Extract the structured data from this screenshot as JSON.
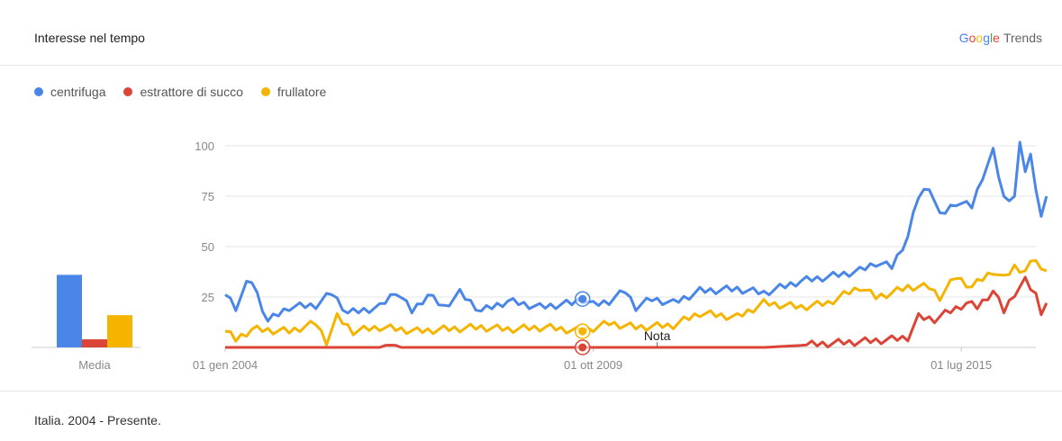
{
  "header": {
    "title": "Interesse nel tempo",
    "brand": {
      "g1": "G",
      "g2": "o",
      "g3": "o",
      "g4": "g",
      "g5": "l",
      "g6": "e",
      "trends": "Trends"
    }
  },
  "footer": {
    "text": "Italia. 2004 - Presente."
  },
  "colors": {
    "centrifuga": "#4a86e8",
    "estrattore": "#db4437",
    "frullatore": "#f4b400",
    "grid": "#e6e6e6"
  },
  "chart_data": {
    "type": "line",
    "x_start": "2004-01",
    "x_end": "2016-09",
    "xticks": [
      {
        "label": "01 gen 2004",
        "date": "2004-01"
      },
      {
        "label": "01 ott 2009",
        "date": "2009-10"
      },
      {
        "label": "01 lug 2015",
        "date": "2015-07"
      }
    ],
    "ylim": [
      0,
      100
    ],
    "yticks": [
      25,
      50,
      75,
      100
    ],
    "grid": true,
    "legend_position": "top-left",
    "annotation": {
      "label": "Nota",
      "date": "2010-10"
    },
    "markers": [
      {
        "date": "2009-08"
      }
    ],
    "series": [
      {
        "name": "centrifuga",
        "knots": [
          [
            "2004-01",
            27
          ],
          [
            "2004-03",
            20
          ],
          [
            "2004-05",
            31
          ],
          [
            "2004-06",
            33
          ],
          [
            "2004-09",
            13
          ],
          [
            "2005-01",
            20
          ],
          [
            "2005-06",
            21
          ],
          [
            "2005-09",
            27
          ],
          [
            "2005-12",
            17
          ],
          [
            "2006-06",
            20
          ],
          [
            "2006-09",
            28
          ],
          [
            "2006-12",
            18
          ],
          [
            "2007-03",
            26
          ],
          [
            "2007-06",
            20
          ],
          [
            "2007-09",
            27
          ],
          [
            "2008-01",
            18
          ],
          [
            "2008-06",
            23
          ],
          [
            "2008-12",
            20
          ],
          [
            "2009-06",
            22
          ],
          [
            "2009-08",
            24
          ],
          [
            "2009-10",
            21
          ],
          [
            "2010-01",
            23
          ],
          [
            "2010-04",
            28
          ],
          [
            "2010-06",
            20
          ],
          [
            "2010-09",
            24
          ],
          [
            "2011-01",
            22
          ],
          [
            "2011-06",
            28
          ],
          [
            "2012-01",
            29
          ],
          [
            "2012-06",
            27
          ],
          [
            "2013-01",
            33
          ],
          [
            "2013-06",
            35
          ],
          [
            "2013-12",
            38
          ],
          [
            "2014-03",
            42
          ],
          [
            "2014-06",
            40
          ],
          [
            "2014-09",
            55
          ],
          [
            "2014-11",
            75
          ],
          [
            "2015-01",
            80
          ],
          [
            "2015-03",
            65
          ],
          [
            "2015-06",
            72
          ],
          [
            "2015-09",
            70
          ],
          [
            "2015-11",
            85
          ],
          [
            "2016-01",
            97
          ],
          [
            "2016-03",
            74
          ],
          [
            "2016-05",
            75
          ],
          [
            "2016-06",
            100
          ],
          [
            "2016-07",
            88
          ],
          [
            "2016-08",
            95
          ],
          [
            "2016-09",
            80
          ],
          [
            "2016-10",
            65
          ],
          [
            "2016-11",
            75
          ]
        ]
      },
      {
        "name": "estrattore di succo",
        "knots": [
          [
            "2004-01",
            0
          ],
          [
            "2006-06",
            0
          ],
          [
            "2006-08",
            2
          ],
          [
            "2006-10",
            0
          ],
          [
            "2009-06",
            0
          ],
          [
            "2012-06",
            0
          ],
          [
            "2013-01",
            1
          ],
          [
            "2013-06",
            2
          ],
          [
            "2014-01",
            3
          ],
          [
            "2014-06",
            4
          ],
          [
            "2014-09",
            5
          ],
          [
            "2014-11",
            15
          ],
          [
            "2015-02",
            14
          ],
          [
            "2015-05",
            18
          ],
          [
            "2015-08",
            22
          ],
          [
            "2015-10",
            20
          ],
          [
            "2016-01",
            28
          ],
          [
            "2016-03",
            18
          ],
          [
            "2016-05",
            27
          ],
          [
            "2016-07",
            33
          ],
          [
            "2016-09",
            26
          ],
          [
            "2016-10",
            18
          ],
          [
            "2016-11",
            22
          ]
        ]
      },
      {
        "name": "frullatore",
        "knots": [
          [
            "2004-01",
            8
          ],
          [
            "2004-03",
            4
          ],
          [
            "2004-06",
            9
          ],
          [
            "2005-01",
            8
          ],
          [
            "2005-06",
            12
          ],
          [
            "2005-08",
            3
          ],
          [
            "2005-10",
            15
          ],
          [
            "2006-01",
            8
          ],
          [
            "2006-06",
            10
          ],
          [
            "2007-01",
            8
          ],
          [
            "2007-06",
            9
          ],
          [
            "2008-01",
            10
          ],
          [
            "2008-06",
            9
          ],
          [
            "2009-01",
            10
          ],
          [
            "2009-08",
            8
          ],
          [
            "2010-01",
            12
          ],
          [
            "2010-06",
            10
          ],
          [
            "2011-01",
            11
          ],
          [
            "2011-06",
            17
          ],
          [
            "2012-01",
            15
          ],
          [
            "2012-06",
            22
          ],
          [
            "2013-01",
            20
          ],
          [
            "2013-06",
            22
          ],
          [
            "2013-12",
            30
          ],
          [
            "2014-03",
            25
          ],
          [
            "2014-06",
            27
          ],
          [
            "2014-09",
            30
          ],
          [
            "2015-01",
            30
          ],
          [
            "2015-03",
            25
          ],
          [
            "2015-06",
            35
          ],
          [
            "2015-09",
            30
          ],
          [
            "2016-01",
            38
          ],
          [
            "2016-03",
            34
          ],
          [
            "2016-05",
            40
          ],
          [
            "2016-07",
            38
          ],
          [
            "2016-09",
            44
          ],
          [
            "2016-10",
            38
          ],
          [
            "2016-11",
            38
          ]
        ]
      }
    ],
    "summary": {
      "label": "Media",
      "bars": [
        {
          "series": "centrifuga",
          "value": 36
        },
        {
          "series": "estrattore di succo",
          "value": 4
        },
        {
          "series": "frullatore",
          "value": 16
        }
      ]
    }
  }
}
